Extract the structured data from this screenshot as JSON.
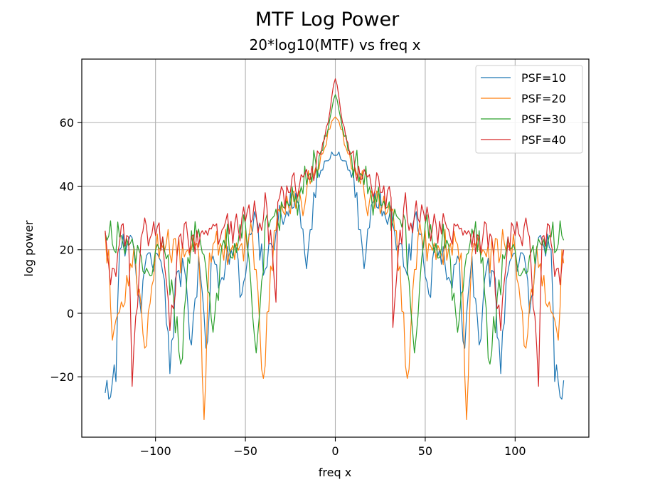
{
  "figure_title": "MTF Log Power",
  "chart_data": {
    "type": "line",
    "title": "20*log10(MTF) vs freq x",
    "xlabel": "freq x",
    "ylabel": "log power",
    "xlim": [
      -141,
      141
    ],
    "ylim": [
      -39,
      80
    ],
    "xticks": [
      -100,
      -50,
      0,
      50,
      100
    ],
    "xtick_labels": [
      "−100",
      "−50",
      "0",
      "50",
      "100"
    ],
    "yticks": [
      -20,
      0,
      20,
      40,
      60
    ],
    "ytick_labels": [
      "−20",
      "0",
      "20",
      "40",
      "60"
    ],
    "grid": true,
    "legend_position": "top-right",
    "x_range": [
      -128,
      127
    ],
    "series": [
      {
        "name": "PSF=10",
        "color": "#1f77b4",
        "peak": 49.7,
        "x": [
          -122,
          -120,
          -116,
          -112,
          -108,
          -104,
          -100,
          -96,
          -92,
          -88,
          -84,
          -80,
          -76,
          -72,
          -68,
          -64,
          -60,
          -56,
          -52,
          -48,
          -44,
          -40,
          -36,
          -32,
          -28,
          -24,
          -20,
          -16,
          -12,
          -8,
          -4,
          0,
          4,
          8,
          12,
          16,
          20,
          24,
          28,
          32,
          36,
          40,
          44,
          48,
          52,
          56,
          60,
          64,
          68,
          72,
          76,
          80,
          84,
          88,
          92,
          96,
          100,
          104,
          108,
          112,
          116,
          120,
          122
        ],
        "y": [
          -21.5,
          20,
          21,
          20,
          0,
          19,
          19,
          13,
          -19,
          13,
          14,
          -10,
          18,
          -11,
          18,
          10,
          21,
          22,
          6,
          25,
          30,
          12,
          22,
          28,
          30,
          33,
          34,
          14,
          38,
          45,
          48,
          49.7,
          48,
          45,
          38,
          14,
          34,
          33,
          30,
          28,
          22,
          12,
          30,
          25,
          6,
          22,
          21,
          10,
          18,
          -11,
          18,
          -10,
          14,
          13,
          -19,
          13,
          19,
          19,
          0,
          20,
          21,
          20,
          -21.5
        ]
      },
      {
        "name": "PSF=20",
        "color": "#ff7f0e",
        "peak": 61.8,
        "x": [
          -126,
          -124,
          -118,
          -112,
          -106,
          -100,
          -94,
          -88,
          -82,
          -76,
          -73,
          -70,
          -64,
          -58,
          -52,
          -46,
          -40,
          -34,
          -28,
          -22,
          -16,
          -10,
          -6,
          -3,
          0,
          3,
          6,
          10,
          16,
          22,
          28,
          34,
          40,
          46,
          52,
          58,
          64,
          70,
          73,
          76,
          82,
          88,
          94,
          100,
          106,
          112,
          118,
          124,
          126
        ],
        "y": [
          20,
          -8.5,
          2,
          21,
          -11,
          20,
          22,
          18,
          20,
          19,
          -33.5,
          19,
          22,
          20,
          22,
          24,
          -20.5,
          26,
          31,
          33,
          38,
          45,
          52,
          58,
          61.8,
          58,
          52,
          45,
          38,
          33,
          31,
          26,
          -20.5,
          24,
          22,
          20,
          22,
          19,
          -33.5,
          19,
          20,
          18,
          22,
          20,
          -11,
          21,
          2,
          -8.5,
          20
        ]
      },
      {
        "name": "PSF=30",
        "color": "#2ca02c",
        "peak": 68.8,
        "x": [
          -127,
          -120,
          -114,
          -108,
          -102,
          -96,
          -90,
          -86,
          -80,
          -74,
          -68,
          -62,
          -56,
          -50,
          -44,
          -38,
          -32,
          -26,
          -20,
          -14,
          -8,
          -4,
          -2,
          0,
          2,
          4,
          8,
          14,
          20,
          26,
          32,
          38,
          44,
          50,
          56,
          62,
          68,
          74,
          80,
          86,
          90,
          96,
          102,
          108,
          114,
          120,
          127
        ],
        "y": [
          23,
          24,
          22,
          18,
          12,
          24,
          5,
          -16,
          26,
          19,
          -6,
          23,
          22,
          28,
          -12.5,
          31,
          29,
          34,
          37,
          44,
          51,
          58,
          64,
          68.8,
          64,
          58,
          51,
          44,
          37,
          34,
          29,
          31,
          -12.5,
          28,
          22,
          23,
          -6,
          19,
          26,
          -16,
          5,
          24,
          12,
          18,
          22,
          24,
          23
        ]
      },
      {
        "name": "PSF=40",
        "color": "#d62728",
        "peak": 73.8,
        "x": [
          -128,
          -125,
          -120,
          -115,
          -113,
          -108,
          -102,
          -96,
          -92,
          -86,
          -80,
          -74,
          -68,
          -62,
          -56,
          -50,
          -44,
          -38,
          -32,
          -26,
          -20,
          -14,
          -8,
          -4,
          -2,
          0,
          2,
          4,
          8,
          14,
          20,
          26,
          32,
          38,
          44,
          50,
          56,
          62,
          68,
          74,
          80,
          86,
          92,
          96,
          102,
          108,
          113,
          115,
          120,
          125,
          127
        ],
        "y": [
          26,
          9,
          22,
          24,
          -23,
          24,
          25,
          24,
          -5.5,
          25,
          24,
          26,
          28,
          27,
          28,
          29,
          31,
          33,
          35,
          38,
          40,
          42,
          50,
          60,
          68,
          73.8,
          68,
          60,
          50,
          42,
          40,
          38,
          -4.5,
          33,
          31,
          29,
          28,
          27,
          28,
          26,
          24,
          25,
          -5.5,
          24,
          25,
          24,
          -23,
          24,
          22,
          9,
          20
        ]
      }
    ]
  }
}
